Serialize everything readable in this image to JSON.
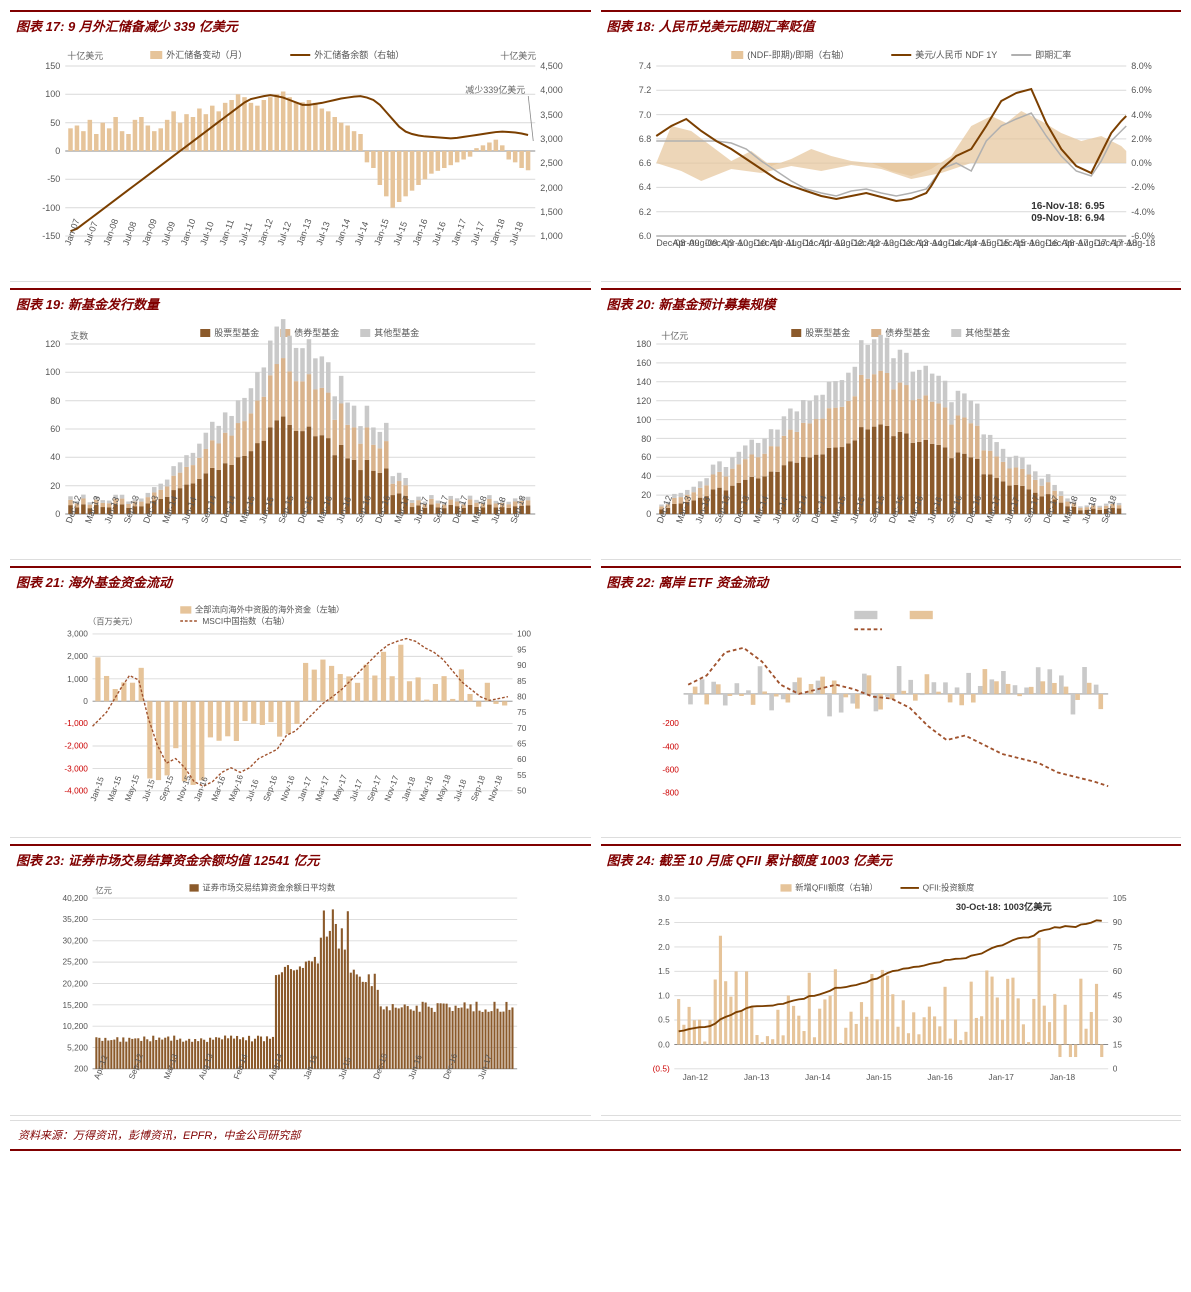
{
  "colors": {
    "title": "#800000",
    "rule": "#800000",
    "grid": "#d9d9d9",
    "axis": "#888888",
    "text": "#555555",
    "bar_tan": "#e6c49a",
    "line_brown": "#7b3f00",
    "line_gray": "#b0b0b0",
    "bar_brown": "#8b5a2b",
    "bar_gray": "#c9c9c9",
    "bar_tan2": "#d9b38c",
    "dash_brown": "#a0522d",
    "neg_red": "#c00000",
    "bg": "#ffffff"
  },
  "source": "资料来源：万得资讯，彭博资讯，EPFR，中金公司研究部",
  "charts": {
    "c17": {
      "title": "图表 17: 9 月外汇储备减少 339 亿美元",
      "unit_left": "十亿美元",
      "unit_right": "十亿美元",
      "legend": [
        "外汇储备变动（月）",
        "外汇储备余额（右轴）"
      ],
      "annot": "减少339亿美元",
      "y_left": {
        "min": -150,
        "max": 150,
        "step": 50,
        "ticks": [
          -150,
          -100,
          -50,
          0,
          50,
          100,
          150
        ]
      },
      "y_right": {
        "min": 1000,
        "max": 4500,
        "step": 500,
        "ticks": [
          1000,
          1500,
          2000,
          2500,
          3000,
          3500,
          4000,
          4500
        ]
      },
      "x_labels": [
        "Jan-07",
        "Jul-07",
        "Jan-08",
        "Jul-08",
        "Jan-09",
        "Jul-09",
        "Jan-10",
        "Jul-10",
        "Jan-11",
        "Jul-11",
        "Jan-12",
        "Jul-12",
        "Jan-13",
        "Jul-13",
        "Jan-14",
        "Jul-14",
        "Jan-15",
        "Jul-15",
        "Jan-16",
        "Jul-16",
        "Jan-17",
        "Jul-17",
        "Jan-18",
        "Jul-18"
      ],
      "bars": [
        40,
        45,
        35,
        55,
        30,
        50,
        40,
        60,
        35,
        30,
        55,
        60,
        45,
        35,
        40,
        55,
        70,
        50,
        65,
        60,
        75,
        65,
        80,
        70,
        85,
        90,
        100,
        95,
        85,
        80,
        90,
        95,
        100,
        105,
        95,
        85,
        86,
        90,
        85,
        75,
        70,
        60,
        50,
        45,
        35,
        30,
        -20,
        -30,
        -60,
        -80,
        -100,
        -90,
        -80,
        -70,
        -60,
        -50,
        -40,
        -35,
        -30,
        -25,
        -20,
        -15,
        -10,
        5,
        10,
        15,
        20,
        10,
        -15,
        -20,
        -30,
        -34
      ],
      "line": [
        1100,
        1150,
        1250,
        1350,
        1450,
        1550,
        1650,
        1750,
        1850,
        1950,
        2050,
        2150,
        2250,
        2350,
        2450,
        2550,
        2650,
        2750,
        2850,
        2950,
        3050,
        3150,
        3250,
        3350,
        3450,
        3550,
        3650,
        3750,
        3820,
        3850,
        3880,
        3900,
        3880,
        3850,
        3800,
        3750,
        3700,
        3700,
        3720,
        3740,
        3770,
        3800,
        3830,
        3850,
        3870,
        3880,
        3850,
        3800,
        3700,
        3550,
        3400,
        3250,
        3150,
        3100,
        3070,
        3050,
        3040,
        3030,
        3020,
        3010,
        3020,
        3040,
        3060,
        3080,
        3100,
        3120,
        3140,
        3150,
        3140,
        3130,
        3110,
        3080
      ]
    },
    "c18": {
      "title": "图表 18: 人民币兑美元即期汇率贬值",
      "legend": [
        "(NDF-即期)/即期（右轴）",
        "美元/人民币 NDF 1Y",
        "即期汇率"
      ],
      "annot1": "16-Nov-18: 6.95",
      "annot2": "09-Nov-18: 6.94",
      "y_left": {
        "min": 6.0,
        "max": 7.4,
        "step": 0.2,
        "ticks": [
          6.0,
          6.2,
          6.4,
          6.6,
          6.8,
          7.0,
          7.2,
          7.4
        ]
      },
      "y_right": {
        "min": -6.0,
        "max": 8.0,
        "step": 2.0,
        "ticks": [
          -6.0,
          -4.0,
          -2.0,
          0.0,
          2.0,
          4.0,
          6.0,
          8.0
        ],
        "suffix": "%"
      },
      "x_labels_dense": [
        "Dec-08",
        "Apr-09",
        "Aug-09",
        "Dec-09",
        "Apr-10",
        "Aug-10",
        "Dec-10",
        "Apr-11",
        "Aug-11",
        "Dec-11",
        "Apr-12",
        "Aug-12",
        "Dec-12",
        "Apr-13",
        "Aug-13",
        "Dec-13",
        "Apr-14",
        "Aug-14",
        "Dec-14",
        "Apr-15",
        "Aug-15",
        "Dec-15",
        "Apr-16",
        "Aug-16",
        "Dec-16",
        "Apr-17",
        "Aug-17",
        "Dec-17",
        "Apr-18",
        "Aug-18"
      ]
    },
    "c19": {
      "title": "图表 19: 新基金发行数量",
      "unit_left": "支数",
      "legend": [
        "股票型基金",
        "债券型基金",
        "其他型基金"
      ],
      "y_left": {
        "min": 0,
        "max": 120,
        "step": 20,
        "ticks": [
          0,
          20,
          40,
          60,
          80,
          100,
          120
        ]
      },
      "x_labels": [
        "Dec-12",
        "Mar-13",
        "Jun-13",
        "Sep-13",
        "Dec-13",
        "Mar-14",
        "Jun-14",
        "Sep-14",
        "Dec-14",
        "Mar-15",
        "Jun-15",
        "Sep-15",
        "Dec-15",
        "Mar-16",
        "Jun-16",
        "Sep-16",
        "Dec-16",
        "Mar-17",
        "Jun-17",
        "Sep-17",
        "Dec-17",
        "Mar-18",
        "Jun-18",
        "Sep-18"
      ]
    },
    "c20": {
      "title": "图表 20: 新基金预计募集规模",
      "unit_left": "十亿元",
      "legend": [
        "股票型基金",
        "债券型基金",
        "其他型基金"
      ],
      "y_left": {
        "min": 0,
        "max": 180,
        "step": 20,
        "ticks": [
          0,
          20,
          40,
          60,
          80,
          100,
          120,
          140,
          160,
          180
        ]
      },
      "x_labels": [
        "Dec-12",
        "Mar-13",
        "Jun-13",
        "Sep-13",
        "Dec-13",
        "Mar-14",
        "Jun-14",
        "Sep-14",
        "Dec-14",
        "Mar-15",
        "Jun-15",
        "Sep-15",
        "Dec-15",
        "Mar-16",
        "Jun-16",
        "Sep-16",
        "Dec-16",
        "Mar-17",
        "Jun-17",
        "Sep-17",
        "Dec-17",
        "Mar-18",
        "Jun-18",
        "Sep-18"
      ]
    },
    "c21": {
      "title": "图表 21: 海外基金资金流动",
      "unit_left": "（百万美元）",
      "legend": [
        "全部流向海外中资股的海外资金（左轴）",
        "MSCI中国指数（右轴）"
      ],
      "y_left": {
        "min": -4000,
        "max": 3000,
        "step": 1000,
        "ticks": [
          -4000,
          -3000,
          -2000,
          -1000,
          0,
          1000,
          2000,
          3000
        ]
      },
      "y_right": {
        "min": 50,
        "max": 100,
        "step": 5,
        "ticks": [
          50,
          55,
          60,
          65,
          70,
          75,
          80,
          85,
          90,
          95,
          100
        ]
      },
      "x_labels": [
        "Jan-15",
        "Mar-15",
        "May-15",
        "Jul-15",
        "Sep-15",
        "Nov-15",
        "Jan-16",
        "Mar-16",
        "May-16",
        "Jul-16",
        "Sep-16",
        "Nov-16",
        "Jan-17",
        "Mar-17",
        "May-17",
        "Jul-17",
        "Sep-17",
        "Nov-17",
        "Jan-18",
        "Mar-18",
        "May-18",
        "Jul-18",
        "Sep-18",
        "Nov-18"
      ]
    },
    "c22": {
      "title": "图表 22: 离岸 ETF 资金流动",
      "y_left_ticks_visible": [
        -200,
        -400,
        -600,
        -800
      ]
    },
    "c23": {
      "title": "图表 23: 证券市场交易结算资金余额均值 12541 亿元",
      "unit_left": "亿元",
      "legend": [
        "证券市场交易结算资金余额日平均数"
      ],
      "y_left": {
        "min": 200,
        "max": 40200,
        "step": 5000,
        "ticks": [
          200,
          5200,
          10200,
          15200,
          20200,
          25200,
          30200,
          35200,
          40200
        ]
      },
      "x_labels": [
        "Apr-12",
        "Sep-12",
        "Mar-13",
        "Aug-13",
        "Feb-14",
        "Aug-14",
        "Jan-15",
        "Jul-15",
        "Dec-15",
        "Jun-16",
        "Dec-16",
        "Jun-17"
      ]
    },
    "c24": {
      "title": "图表 24: 截至 10 月底 QFII 累计额度 1003 亿美元",
      "legend": [
        "新增QFII额度（右轴）",
        "QFII:投资额度"
      ],
      "annot": "30-Oct-18: 1003亿美元",
      "y_left": {
        "min": -0.5,
        "max": 3.0,
        "step": 0.5,
        "ticks": [
          "(0.5)",
          "0.0",
          "0.5",
          "1.0",
          "1.5",
          "2.0",
          "2.5",
          "3.0"
        ]
      },
      "y_right": {
        "min": 0,
        "max": 105,
        "step": 15,
        "ticks": [
          0,
          15,
          30,
          45,
          60,
          75,
          90,
          105
        ]
      },
      "x_labels": [
        "Jan-12",
        "Jan-13",
        "Jan-14",
        "Jan-15",
        "Jan-16",
        "Jan-17",
        "Jan-18"
      ]
    }
  }
}
